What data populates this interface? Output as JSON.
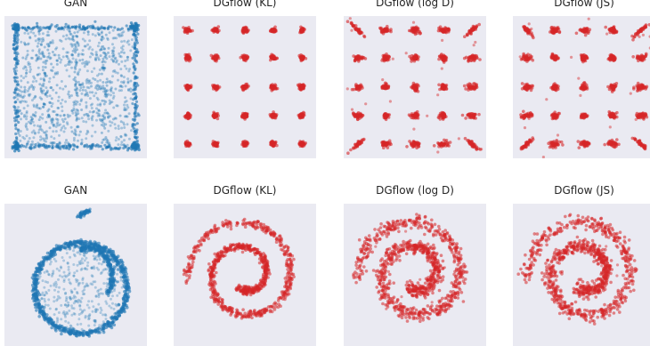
{
  "colors": {
    "background": "#eaeaf2",
    "gan": "#1f77b4",
    "dgflow": "#d62728"
  },
  "chart_data": [
    {
      "type": "scatter",
      "title": "GAN",
      "dataset": "grid",
      "color": "#1f77b4",
      "style": "gan-grid"
    },
    {
      "type": "scatter",
      "title": "DGflow (KL)",
      "dataset": "grid",
      "color": "#d62728",
      "style": "blobs-tight"
    },
    {
      "type": "scatter",
      "title": "DGflow (log D)",
      "dataset": "grid",
      "color": "#d62728",
      "style": "blobs-spread"
    },
    {
      "type": "scatter",
      "title": "DGflow (JS)",
      "dataset": "grid",
      "color": "#d62728",
      "style": "blobs-spread"
    },
    {
      "type": "scatter",
      "title": "GAN",
      "dataset": "spiral",
      "color": "#1f77b4",
      "style": "gan-spiral"
    },
    {
      "type": "scatter",
      "title": "DGflow (KL)",
      "dataset": "spiral",
      "color": "#d62728",
      "style": "spiral-tight"
    },
    {
      "type": "scatter",
      "title": "DGflow (log D)",
      "dataset": "spiral",
      "color": "#d62728",
      "style": "spiral-spread"
    },
    {
      "type": "scatter",
      "title": "DGflow (JS)",
      "dataset": "spiral",
      "color": "#d62728",
      "style": "spiral-spread"
    }
  ]
}
